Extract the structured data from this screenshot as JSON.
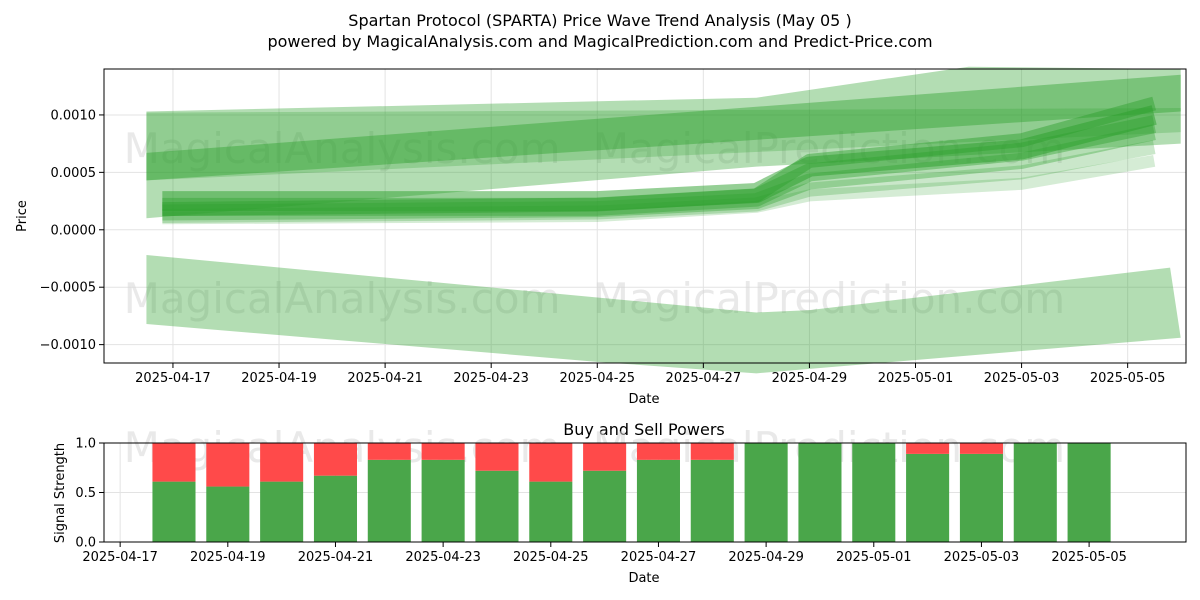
{
  "title": "Spartan Protocol (SPARTA) Price Wave Trend Analysis (May 05 )",
  "subtitle": "powered by MagicalAnalysis.com and MagicalPrediction.com and Predict-Price.com",
  "watermarks": [
    "MagicalAnalysis.com",
    "MagicalPrediction.com"
  ],
  "colors": {
    "band": "#2ca02c",
    "buy": "#4aa64a",
    "sell": "#ff4a4a",
    "grid": "#e3e3e3",
    "watermark": "#d7d7d7"
  },
  "chart_data": [
    {
      "type": "area",
      "title": "",
      "xlabel": "Date",
      "ylabel": "Price",
      "x_ticks": [
        "2025-04-17",
        "2025-04-19",
        "2025-04-21",
        "2025-04-23",
        "2025-04-25",
        "2025-04-27",
        "2025-04-29",
        "2025-05-01",
        "2025-05-03",
        "2025-05-05"
      ],
      "y_ticks": [
        {
          "v": 0.001,
          "label": "0.0010"
        },
        {
          "v": 0.0005,
          "label": "0.0005"
        },
        {
          "v": 0.0,
          "label": "0.0000"
        },
        {
          "v": -0.0005,
          "label": "−0.0005"
        },
        {
          "v": -0.001,
          "label": "−0.0010"
        }
      ],
      "xlim": [
        "2025-04-15.7",
        "2025-05-06.1"
      ],
      "ylim": [
        -0.00116,
        0.0014
      ],
      "grid": true,
      "bands": [
        {
          "upper": [
            [
              "2025-04-16.5",
              0.00103
            ],
            [
              "2025-04-28",
              0.00115
            ],
            [
              "2025-05-02",
              0.00142
            ],
            [
              "2025-05-06",
              0.0014
            ]
          ],
          "lower": [
            [
              "2025-04-16.5",
              0.0001
            ],
            [
              "2025-04-28",
              0.00055
            ],
            [
              "2025-05-02",
              0.00065
            ],
            [
              "2025-05-06",
              0.00075
            ]
          ],
          "opacity": 0.36
        },
        {
          "upper": [
            [
              "2025-04-16.5",
              0.00067
            ],
            [
              "2025-05-06",
              0.00135
            ]
          ],
          "lower": [
            [
              "2025-04-16.5",
              0.00043
            ],
            [
              "2025-05-06",
              0.00103
            ]
          ],
          "opacity": 0.42
        },
        {
          "upper": [
            [
              "2025-04-16.5",
              0.00102
            ],
            [
              "2025-05-06",
              0.00106
            ]
          ],
          "lower": [
            [
              "2025-04-16.5",
              0.00043
            ],
            [
              "2025-05-06",
              0.00085
            ]
          ],
          "opacity": 0.25
        },
        {
          "upper": [
            [
              "2025-04-16.5",
              -0.00022
            ],
            [
              "2025-04-28",
              -0.00072
            ],
            [
              "2025-04-29",
              -0.0007
            ],
            [
              "2025-05-05.8",
              -0.00033
            ]
          ],
          "lower": [
            [
              "2025-04-16.5",
              -0.00082
            ],
            [
              "2025-04-25",
              -0.00115
            ],
            [
              "2025-04-28",
              -0.00125
            ],
            [
              "2025-05-06",
              -0.00094
            ]
          ],
          "opacity": 0.36
        }
      ],
      "price_lines": [
        {
          "points": [
            [
              "2025-04-16.8",
              0.00025
            ],
            [
              "2025-04-25",
              0.00025
            ],
            [
              "2025-04-28",
              0.00032
            ],
            [
              "2025-04-29",
              0.00055
            ],
            [
              "2025-05-03",
              0.0007
            ],
            [
              "2025-05-05.5",
              0.001
            ]
          ],
          "width": 20,
          "opacity": 0.5
        },
        {
          "points": [
            [
              "2025-04-16.8",
              0.0002
            ],
            [
              "2025-04-25",
              0.0002
            ],
            [
              "2025-04-28",
              0.00028
            ],
            [
              "2025-04-29",
              0.0005
            ],
            [
              "2025-05-03",
              0.00068
            ],
            [
              "2025-05-05.5",
              0.00092
            ]
          ],
          "width": 18,
          "opacity": 0.4
        },
        {
          "points": [
            [
              "2025-04-16.8",
              0.00015
            ],
            [
              "2025-04-25",
              0.00018
            ],
            [
              "2025-04-28",
              0.00025
            ],
            [
              "2025-04-29",
              0.00042
            ],
            [
              "2025-05-03",
              0.0006
            ],
            [
              "2025-05-05.5",
              0.00085
            ]
          ],
          "width": 16,
          "opacity": 0.35
        },
        {
          "points": [
            [
              "2025-04-16.8",
              0.00012
            ],
            [
              "2025-04-25",
              0.00015
            ],
            [
              "2025-04-28",
              0.00022
            ],
            [
              "2025-04-29",
              0.00035
            ],
            [
              "2025-05-03",
              0.0005
            ],
            [
              "2025-05-05.5",
              0.00072
            ]
          ],
          "width": 14,
          "opacity": 0.25
        },
        {
          "points": [
            [
              "2025-04-16.8",
              0.00018
            ],
            [
              "2025-04-25",
              0.00022
            ],
            [
              "2025-04-28",
              0.0003
            ],
            [
              "2025-04-29",
              0.0006
            ],
            [
              "2025-05-03",
              0.00078
            ],
            [
              "2025-05-05.5",
              0.0011
            ]
          ],
          "width": 14,
          "opacity": 0.45
        },
        {
          "points": [
            [
              "2025-04-16.8",
              0.0001
            ],
            [
              "2025-04-25",
              0.00012
            ],
            [
              "2025-04-28",
              0.0002
            ],
            [
              "2025-04-29",
              0.0003
            ],
            [
              "2025-05-03",
              0.0004
            ],
            [
              "2025-05-05.5",
              0.0006
            ]
          ],
          "width": 12,
          "opacity": 0.2
        }
      ]
    },
    {
      "type": "bar",
      "title": "Buy and Sell Powers",
      "xlabel": "Date",
      "ylabel": "Signal Strength",
      "x_ticks": [
        "2025-04-17",
        "2025-04-19",
        "2025-04-21",
        "2025-04-23",
        "2025-04-25",
        "2025-04-27",
        "2025-04-29",
        "2025-05-01",
        "2025-05-03",
        "2025-05-05"
      ],
      "y_ticks": [
        {
          "v": 0.0,
          "label": "0.0"
        },
        {
          "v": 0.5,
          "label": "0.5"
        },
        {
          "v": 1.0,
          "label": "1.0"
        }
      ],
      "xlim": [
        "2025-04-16.7",
        "2025-05-06.8"
      ],
      "ylim": [
        0,
        1.0
      ],
      "categories": [
        "2025-04-18",
        "2025-04-19",
        "2025-04-20",
        "2025-04-21",
        "2025-04-22",
        "2025-04-23",
        "2025-04-24",
        "2025-04-25",
        "2025-04-26",
        "2025-04-27",
        "2025-04-28",
        "2025-04-29",
        "2025-04-30",
        "2025-05-01",
        "2025-05-02",
        "2025-05-03",
        "2025-05-04",
        "2025-05-05"
      ],
      "series": [
        {
          "name": "Buy",
          "values": [
            0.61,
            0.56,
            0.61,
            0.67,
            0.83,
            0.83,
            0.72,
            0.61,
            0.72,
            0.83,
            0.83,
            1.0,
            1.0,
            1.0,
            0.89,
            0.89,
            1.0,
            1.0
          ]
        },
        {
          "name": "Sell",
          "values": [
            0.39,
            0.44,
            0.39,
            0.33,
            0.17,
            0.17,
            0.28,
            0.39,
            0.28,
            0.17,
            0.17,
            0.0,
            0.0,
            0.0,
            0.11,
            0.11,
            0.0,
            0.0
          ]
        }
      ]
    }
  ]
}
